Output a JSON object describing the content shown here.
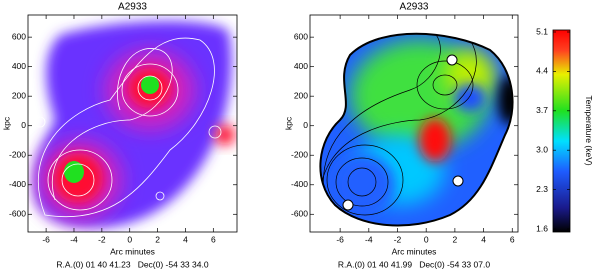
{
  "chart_data": [
    {
      "type": "map",
      "title": "A2933",
      "xlabel": "Arc minutes",
      "ylabel": "kpc",
      "xlim": [
        -7.3,
        7.7
      ],
      "ylim": [
        -720,
        750
      ],
      "xticks": [
        -6,
        -4,
        -2,
        0,
        2,
        4,
        6
      ],
      "yticks": [
        -600,
        -400,
        -200,
        0,
        200,
        400,
        600
      ],
      "footer": "R.A.(0) 01 40 41.23   Dec(0) -54 33 34.0"
    },
    {
      "type": "map",
      "title": "A2933",
      "xlabel": "Arc minutes",
      "ylabel": "kpc",
      "xlim": [
        -8.1,
        6.4
      ],
      "ylim": [
        -720,
        750
      ],
      "xticks": [
        -6,
        -4,
        -2,
        0,
        2,
        4,
        6
      ],
      "yticks": [
        -600,
        -400,
        -200,
        0,
        200,
        400,
        600
      ],
      "footer": "R.A.(0) 01 40 41.99   Dec(0) -54 33 07.0",
      "colorbar": {
        "label": "Temperature (keV)",
        "lim": [
          1.6,
          5.1
        ],
        "ticks": [
          1.6,
          2.3,
          {
            "value": 3,
            "label": "3.0"
          },
          3.7,
          4.4,
          5.1
        ]
      }
    }
  ]
}
